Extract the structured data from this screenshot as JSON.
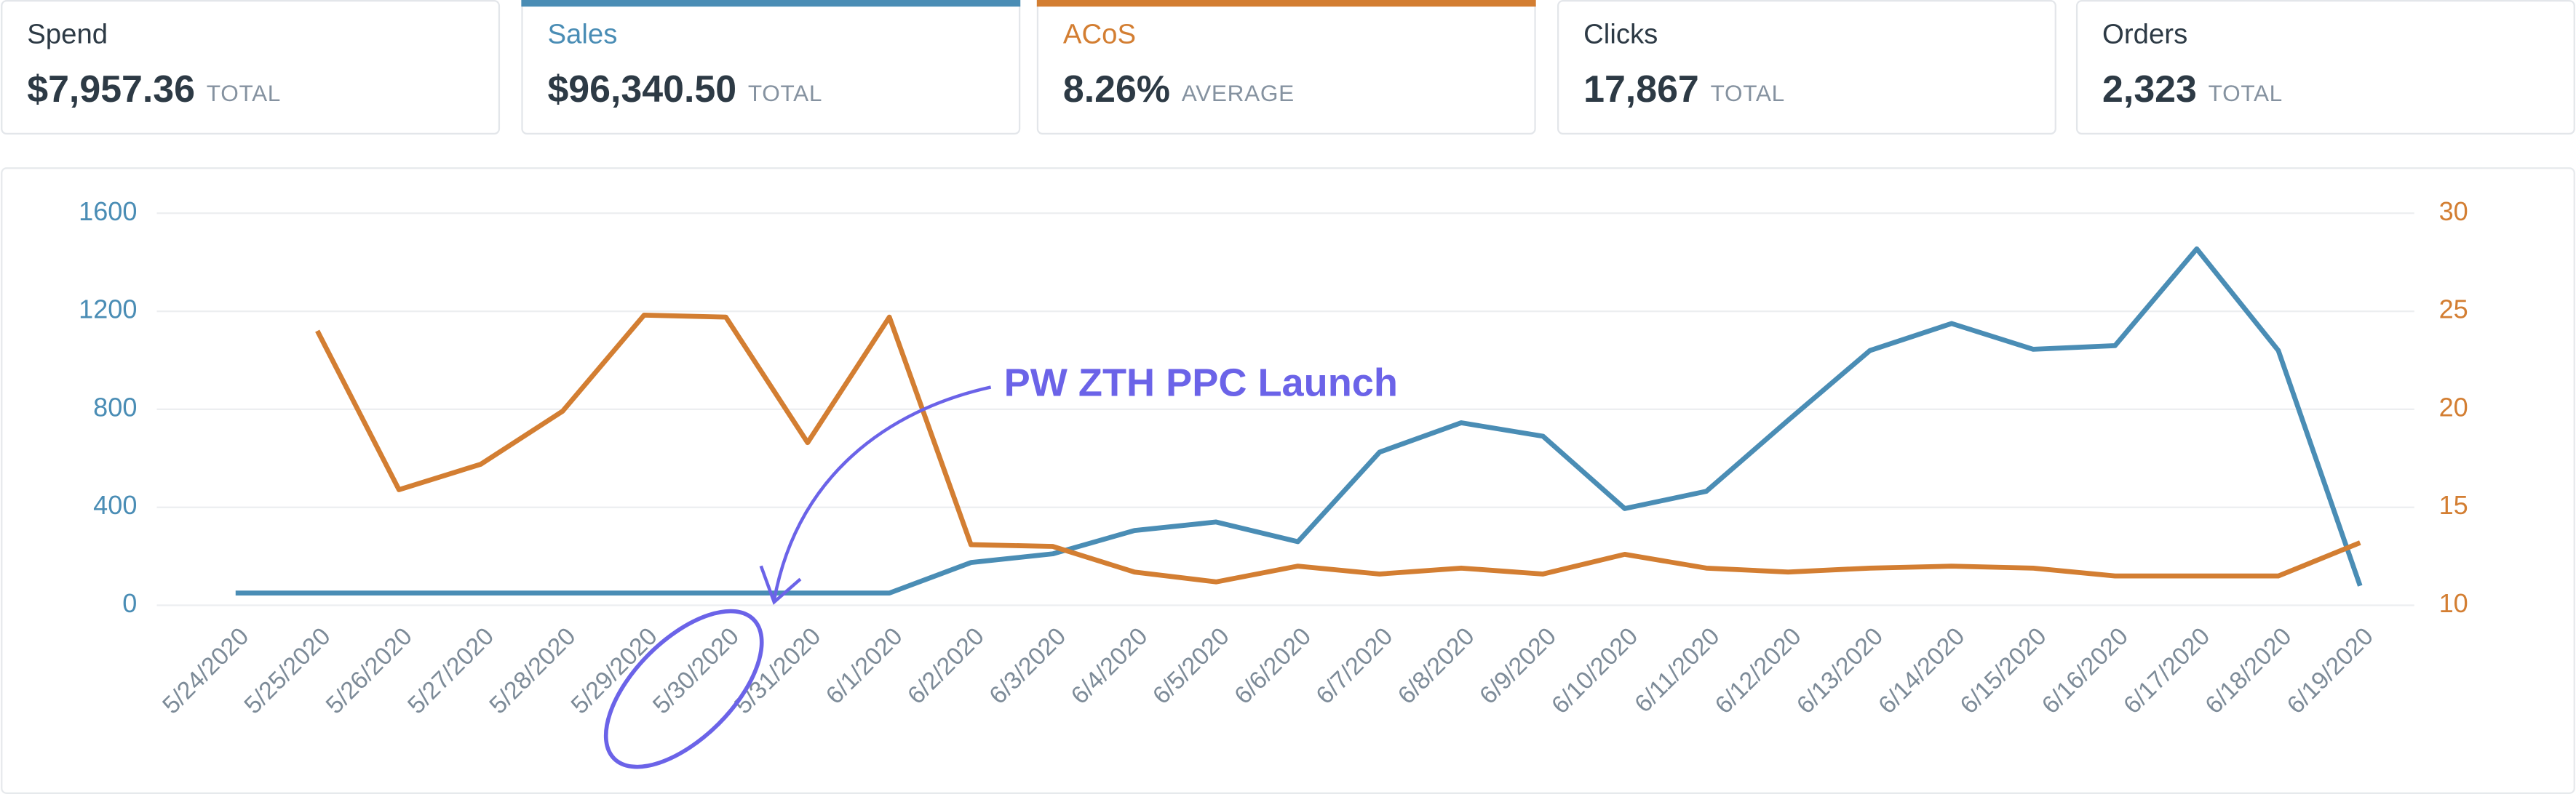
{
  "cards": [
    {
      "label": "Spend",
      "value": "$7,957.36",
      "unit": "TOTAL"
    },
    {
      "label": "Sales",
      "value": "$96,340.50",
      "unit": "TOTAL"
    },
    {
      "label": "ACoS",
      "value": "8.26%",
      "unit": "AVERAGE"
    },
    {
      "label": "Clicks",
      "value": "17,867",
      "unit": "TOTAL"
    },
    {
      "label": "Orders",
      "value": "2,323",
      "unit": "TOTAL"
    }
  ],
  "chart_data": {
    "type": "line",
    "annotation": "PW ZTH PPC Launch",
    "categories": [
      "5/24/2020",
      "5/25/2020",
      "5/26/2020",
      "5/27/2020",
      "5/28/2020",
      "5/29/2020",
      "5/30/2020",
      "5/31/2020",
      "6/1/2020",
      "6/2/2020",
      "6/3/2020",
      "6/4/2020",
      "6/5/2020",
      "6/6/2020",
      "6/7/2020",
      "6/8/2020",
      "6/9/2020",
      "6/10/2020",
      "6/11/2020",
      "6/12/2020",
      "6/13/2020",
      "6/14/2020",
      "6/15/2020",
      "6/16/2020",
      "6/17/2020",
      "6/18/2020",
      "6/19/2020"
    ],
    "series": [
      {
        "name": "Sales",
        "color": "#4a8db5",
        "values": [
          50,
          50,
          50,
          50,
          50,
          50,
          50,
          50,
          50,
          175,
          210,
          305,
          340,
          260,
          625,
          745,
          690,
          395,
          465,
          755,
          1040,
          1150,
          1045,
          1060,
          1455,
          1040,
          80
        ]
      },
      {
        "name": "ACoS",
        "color": "#d37e32",
        "axis": "y2",
        "values": [
          null,
          24,
          15.9,
          17.2,
          19.9,
          24.8,
          24.7,
          18.3,
          24.7,
          13.1,
          13,
          11.7,
          11.2,
          12,
          11.6,
          11.9,
          11.6,
          12.6,
          11.9,
          11.7,
          11.9,
          12,
          11.9,
          11.5,
          11.5,
          11.5,
          13.2
        ]
      }
    ],
    "ylim": [
      0,
      1600
    ],
    "yticks": [
      0,
      400,
      800,
      1200,
      1600
    ],
    "y2lim": [
      10,
      30
    ],
    "y2ticks": [
      10,
      15,
      20,
      25,
      30
    ],
    "grid": true
  }
}
